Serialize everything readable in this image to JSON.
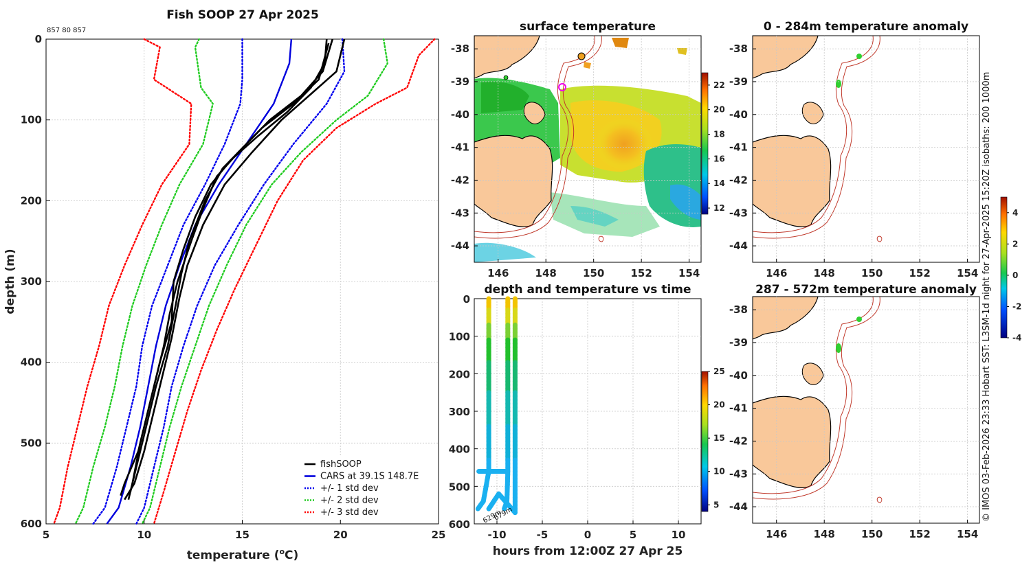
{
  "chart_data": [
    {
      "type": "line",
      "title": "Fish SOOP 27 Apr 2025",
      "subtitle": "857 80 857",
      "xlabel": "temperature (",
      "xlabel_sup": "o",
      "xlabel_end": "C)",
      "ylabel": "depth (m)",
      "xlim": [
        5,
        25
      ],
      "ylim": [
        0,
        600
      ],
      "y_reversed": true,
      "xticks": [
        "5",
        "10",
        "15",
        "20",
        "25"
      ],
      "yticks": [
        "0",
        "100",
        "200",
        "300",
        "400",
        "500",
        "600"
      ],
      "grid": true,
      "legend_position": "bottom-right",
      "series": [
        {
          "name": "CARS at 39.1S 148.7E",
          "color": "#0000dd",
          "style": "solid",
          "points": [
            [
              17.5,
              0
            ],
            [
              17.4,
              30
            ],
            [
              16.6,
              80
            ],
            [
              15.2,
              130
            ],
            [
              13.8,
              180
            ],
            [
              12.6,
              230
            ],
            [
              11.8,
              280
            ],
            [
              11.1,
              330
            ],
            [
              10.6,
              380
            ],
            [
              10.2,
              430
            ],
            [
              9.8,
              480
            ],
            [
              9.3,
              530
            ],
            [
              8.7,
              580
            ],
            [
              8.1,
              600
            ]
          ]
        },
        {
          "name": "+/- 1 std dev",
          "color": "#0000ee",
          "style": "dot",
          "points": [
            [
              15.0,
              0
            ],
            [
              15.0,
              50
            ],
            [
              14.9,
              80
            ],
            [
              14.1,
              130
            ],
            [
              13.1,
              180
            ],
            [
              12.0,
              230
            ],
            [
              11.2,
              280
            ],
            [
              10.4,
              330
            ],
            [
              9.9,
              380
            ],
            [
              9.6,
              430
            ],
            [
              9.1,
              480
            ],
            [
              8.6,
              530
            ],
            [
              8.0,
              580
            ],
            [
              7.4,
              600
            ]
          ]
        },
        {
          "name": "+/- 1 std dev",
          "color": "#0000ee",
          "style": "dot",
          "points": [
            [
              20.1,
              0
            ],
            [
              20.2,
              40
            ],
            [
              19.3,
              80
            ],
            [
              17.6,
              130
            ],
            [
              16.1,
              180
            ],
            [
              14.8,
              230
            ],
            [
              13.6,
              280
            ],
            [
              12.7,
              330
            ],
            [
              12.0,
              380
            ],
            [
              11.4,
              430
            ],
            [
              11.0,
              480
            ],
            [
              10.5,
              530
            ],
            [
              10.0,
              580
            ],
            [
              9.6,
              600
            ]
          ]
        },
        {
          "name": "+/- 2 std dev",
          "color": "#22cc22",
          "style": "dot",
          "points": [
            [
              12.8,
              0
            ],
            [
              12.6,
              10
            ],
            [
              12.9,
              60
            ],
            [
              13.5,
              80
            ],
            [
              13.0,
              130
            ],
            [
              11.8,
              180
            ],
            [
              10.9,
              230
            ],
            [
              10.1,
              280
            ],
            [
              9.4,
              330
            ],
            [
              8.9,
              380
            ],
            [
              8.5,
              430
            ],
            [
              8.0,
              480
            ],
            [
              7.4,
              530
            ],
            [
              6.9,
              580
            ],
            [
              6.5,
              600
            ]
          ]
        },
        {
          "name": "+/- 2 std dev",
          "color": "#22cc22",
          "style": "dot",
          "points": [
            [
              22.2,
              0
            ],
            [
              22.4,
              30
            ],
            [
              21.4,
              70
            ],
            [
              19.8,
              100
            ],
            [
              18.0,
              140
            ],
            [
              16.5,
              180
            ],
            [
              15.2,
              230
            ],
            [
              14.2,
              280
            ],
            [
              13.3,
              330
            ],
            [
              12.6,
              380
            ],
            [
              11.9,
              430
            ],
            [
              11.3,
              480
            ],
            [
              10.8,
              530
            ],
            [
              10.3,
              580
            ],
            [
              9.9,
              600
            ]
          ]
        },
        {
          "name": "+/- 3 std dev",
          "color": "#ff0000",
          "style": "dot",
          "points": [
            [
              10.0,
              0
            ],
            [
              10.8,
              10
            ],
            [
              10.5,
              50
            ],
            [
              12.4,
              80
            ],
            [
              12.3,
              130
            ],
            [
              10.9,
              180
            ],
            [
              9.9,
              230
            ],
            [
              9.0,
              280
            ],
            [
              8.2,
              330
            ],
            [
              7.7,
              380
            ],
            [
              7.1,
              430
            ],
            [
              6.6,
              480
            ],
            [
              6.1,
              530
            ],
            [
              5.7,
              580
            ],
            [
              5.4,
              600
            ]
          ]
        },
        {
          "name": "+/- 3 std dev",
          "color": "#ff0000",
          "style": "dot",
          "points": [
            [
              24.8,
              0
            ],
            [
              24.0,
              20
            ],
            [
              23.4,
              60
            ],
            [
              21.8,
              80
            ],
            [
              19.8,
              110
            ],
            [
              18.1,
              150
            ],
            [
              16.8,
              200
            ],
            [
              15.6,
              260
            ],
            [
              14.6,
              310
            ],
            [
              13.7,
              360
            ],
            [
              12.9,
              410
            ],
            [
              12.2,
              460
            ],
            [
              11.6,
              510
            ],
            [
              11.0,
              560
            ],
            [
              10.5,
              600
            ]
          ]
        },
        {
          "name": "fishSOOP",
          "color": "#000000",
          "style": "solid",
          "points": [
            [
              19.3,
              0
            ],
            [
              19.2,
              30
            ],
            [
              18.5,
              60
            ],
            [
              17.3,
              90
            ],
            [
              15.8,
              120
            ],
            [
              14.4,
              150
            ],
            [
              13.4,
              180
            ],
            [
              12.6,
              220
            ],
            [
              12.0,
              260
            ],
            [
              11.5,
              300
            ],
            [
              11.4,
              350
            ],
            [
              10.8,
              400
            ],
            [
              10.3,
              450
            ],
            [
              9.8,
              500
            ],
            [
              9.4,
              550
            ],
            [
              9.2,
              570
            ]
          ]
        },
        {
          "name": "fishSOOP",
          "color": "#000000",
          "style": "solid",
          "points": [
            [
              19.6,
              0
            ],
            [
              19.1,
              40
            ],
            [
              18.0,
              70
            ],
            [
              16.4,
              100
            ],
            [
              15.2,
              130
            ],
            [
              14.0,
              160
            ],
            [
              13.1,
              200
            ],
            [
              12.3,
              250
            ],
            [
              11.9,
              290
            ],
            [
              11.6,
              330
            ],
            [
              11.2,
              380
            ],
            [
              10.6,
              430
            ],
            [
              10.1,
              480
            ],
            [
              9.6,
              530
            ],
            [
              9.3,
              560
            ]
          ]
        },
        {
          "name": "fishSOOP",
          "color": "#000000",
          "style": "solid",
          "points": [
            [
              20.2,
              0
            ],
            [
              19.8,
              40
            ],
            [
              18.4,
              70
            ],
            [
              17.0,
              100
            ],
            [
              15.5,
              140
            ],
            [
              14.1,
              180
            ],
            [
              13.0,
              230
            ],
            [
              12.2,
              280
            ],
            [
              11.8,
              320
            ],
            [
              11.4,
              370
            ],
            [
              10.9,
              420
            ],
            [
              10.5,
              460
            ],
            [
              10.0,
              510
            ],
            [
              9.5,
              550
            ],
            [
              9.0,
              570
            ]
          ]
        },
        {
          "name": "fishSOOP",
          "color": "#000000",
          "style": "solid",
          "points": [
            [
              19.4,
              5
            ],
            [
              18.9,
              50
            ],
            [
              17.6,
              80
            ],
            [
              16.0,
              110
            ],
            [
              14.8,
              140
            ],
            [
              13.7,
              170
            ],
            [
              13.0,
              210
            ],
            [
              12.4,
              250
            ],
            [
              11.7,
              300
            ],
            [
              11.3,
              340
            ],
            [
              11.0,
              380
            ],
            [
              10.6,
              420
            ],
            [
              10.1,
              470
            ],
            [
              9.7,
              510
            ],
            [
              9.0,
              550
            ],
            [
              8.8,
              565
            ]
          ]
        }
      ],
      "legend": [
        {
          "label": "fishSOOP",
          "color": "#000000",
          "style": "solid"
        },
        {
          "label": "CARS at 39.1S 148.7E",
          "color": "#0000dd",
          "style": "solid"
        },
        {
          "label": "+/- 1 std dev",
          "color": "#0000ee",
          "style": "dot"
        },
        {
          "label": "+/- 2 std dev",
          "color": "#22cc22",
          "style": "dot"
        },
        {
          "label": "+/- 3 std dev",
          "color": "#ff0000",
          "style": "dot"
        }
      ]
    },
    {
      "type": "heatmap",
      "title": "surface temperature",
      "xlim": [
        145,
        154.5
      ],
      "ylim": [
        -44.5,
        -37.6
      ],
      "xticks": [
        "146",
        "148",
        "150",
        "152",
        "154"
      ],
      "yticks": [
        "-38",
        "-39",
        "-40",
        "-41",
        "-42",
        "-43",
        "-44"
      ],
      "colorbar_ticks": [
        "12",
        "14",
        "16",
        "18",
        "20",
        "22"
      ],
      "colorbar_range": [
        11.5,
        23
      ],
      "observation_marker": {
        "lon": 148.7,
        "lat": -39.1
      }
    },
    {
      "type": "scatter",
      "title": "depth and temperature vs time",
      "xlabel": "hours from 12:00Z 27 Apr 25",
      "xlim": [
        -12.5,
        12.5
      ],
      "ylim": [
        0,
        600
      ],
      "y_reversed": true,
      "xticks": [
        "-10",
        "-5",
        "0",
        "5",
        "10"
      ],
      "yticks": [
        "0",
        "100",
        "200",
        "300",
        "400",
        "500",
        "600"
      ],
      "colorbar_ticks": [
        "5",
        "10",
        "15",
        "20",
        "25"
      ],
      "colorbar_range": [
        4,
        25
      ],
      "annotations": [
        "629m",
        "679m"
      ],
      "tracks": [
        {
          "points": [
            [
              -10.9,
              0
            ],
            [
              -10.9,
              100
            ],
            [
              -10.9,
              300
            ],
            [
              -10.9,
              460
            ],
            [
              -11.5,
              540
            ],
            [
              -12.1,
              560
            ]
          ]
        },
        {
          "points": [
            [
              -12.0,
              460
            ],
            [
              -9.0,
              460
            ]
          ]
        },
        {
          "points": [
            [
              -8.8,
              0
            ],
            [
              -8.8,
              100
            ],
            [
              -8.8,
              300
            ],
            [
              -8.8,
              460
            ],
            [
              -8.9,
              540
            ],
            [
              -9.2,
              560
            ]
          ]
        },
        {
          "points": [
            [
              -8.0,
              0
            ],
            [
              -8.0,
              100
            ],
            [
              -8.0,
              300
            ],
            [
              -8.0,
              500
            ],
            [
              -8.0,
              570
            ],
            [
              -9.8,
              520
            ],
            [
              -10.9,
              560
            ]
          ]
        }
      ]
    },
    {
      "type": "heatmap",
      "title": "0 - 284m temperature anomaly",
      "xlim": [
        145,
        154.5
      ],
      "ylim": [
        -44.5,
        -37.6
      ],
      "xticks": [
        "146",
        "148",
        "150",
        "152",
        "154"
      ],
      "yticks": [
        "-38",
        "-39",
        "-40",
        "-41",
        "-42",
        "-43",
        "-44"
      ],
      "colorbar_ticks": [
        "-4",
        "-2",
        "0",
        "2",
        "4"
      ],
      "colorbar_range": [
        -4,
        5
      ],
      "anomaly_points": [
        {
          "lon": 149.5,
          "lat": -38.2
        },
        {
          "lon": 148.6,
          "lat": -39.0
        }
      ]
    },
    {
      "type": "heatmap",
      "title": "287 - 572m temperature anomaly",
      "xlim": [
        145,
        154.5
      ],
      "ylim": [
        -44.5,
        -37.6
      ],
      "xticks": [
        "146",
        "148",
        "150",
        "152",
        "154"
      ],
      "yticks": [
        "-38",
        "-39",
        "-40",
        "-41",
        "-42",
        "-43",
        "-44"
      ],
      "anomaly_points": [
        {
          "lon": 149.5,
          "lat": -38.2
        },
        {
          "lon": 148.6,
          "lat": -39.0
        }
      ]
    }
  ],
  "side_caption": "© IMOS 03-Feb-2026 23:33 Hobart SST: L3SM-1d night for 27-Apr-2025 15:20Z isobaths: 200  1000m"
}
